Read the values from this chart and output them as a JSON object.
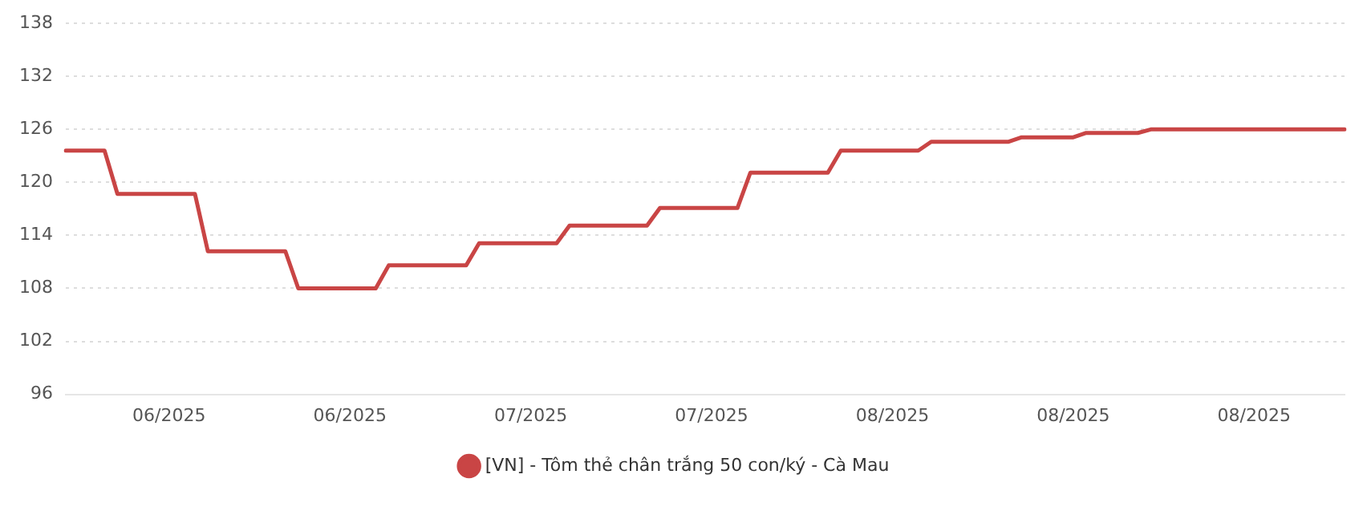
{
  "chart_data": {
    "type": "line",
    "categories": [
      null,
      null,
      null,
      null,
      null,
      null,
      null,
      null,
      "06/2025",
      null,
      null,
      null,
      null,
      null,
      null,
      null,
      null,
      null,
      null,
      null,
      null,
      null,
      "06/2025",
      null,
      null,
      null,
      null,
      null,
      null,
      null,
      null,
      null,
      null,
      null,
      null,
      null,
      "07/2025",
      null,
      null,
      null,
      null,
      null,
      null,
      null,
      null,
      null,
      null,
      null,
      null,
      null,
      "07/2025",
      null,
      null,
      null,
      null,
      null,
      null,
      null,
      null,
      null,
      null,
      null,
      null,
      null,
      "08/2025",
      null,
      null,
      null,
      null,
      null,
      null,
      null,
      null,
      null,
      null,
      null,
      null,
      null,
      "08/2025",
      null,
      null,
      null,
      null,
      null,
      null,
      null,
      null,
      null,
      null,
      null,
      null,
      null,
      "08/2025",
      null,
      null,
      null,
      null,
      null,
      null,
      null
    ],
    "series": [
      {
        "name": "[VN] - Tôm thẻ chân trắng 50 con/ký - Cà Mau",
        "color": "#c94545",
        "values": [
          123.6,
          123.6,
          123.6,
          123.6,
          118.7,
          118.7,
          118.7,
          118.7,
          118.7,
          118.7,
          118.7,
          112.2,
          112.2,
          112.2,
          112.2,
          112.2,
          112.2,
          112.2,
          108,
          108,
          108,
          108,
          108,
          108,
          108,
          110.6,
          110.6,
          110.6,
          110.6,
          110.6,
          110.6,
          110.6,
          113.1,
          113.1,
          113.1,
          113.1,
          113.1,
          113.1,
          113.1,
          115.1,
          115.1,
          115.1,
          115.1,
          115.1,
          115.1,
          115.1,
          117.1,
          117.1,
          117.1,
          117.1,
          117.1,
          117.1,
          117.1,
          121.1,
          121.1,
          121.1,
          121.1,
          121.1,
          121.1,
          121.1,
          123.6,
          123.6,
          123.6,
          123.6,
          123.6,
          123.6,
          123.6,
          124.6,
          124.6,
          124.6,
          124.6,
          124.6,
          124.6,
          124.6,
          125.1,
          125.1,
          125.1,
          125.1,
          125.1,
          125.6,
          125.6,
          125.6,
          125.6,
          125.6,
          126,
          126,
          126,
          126,
          126,
          126,
          126,
          126,
          126,
          126,
          126,
          126,
          126,
          126,
          126,
          126
        ]
      }
    ],
    "ylim": [
      96,
      138
    ],
    "yticks": [
      96,
      102,
      108,
      114,
      120,
      126,
      132,
      138
    ],
    "grid": "y",
    "legend": "bottom",
    "marker": "none",
    "line_style": "solid"
  }
}
